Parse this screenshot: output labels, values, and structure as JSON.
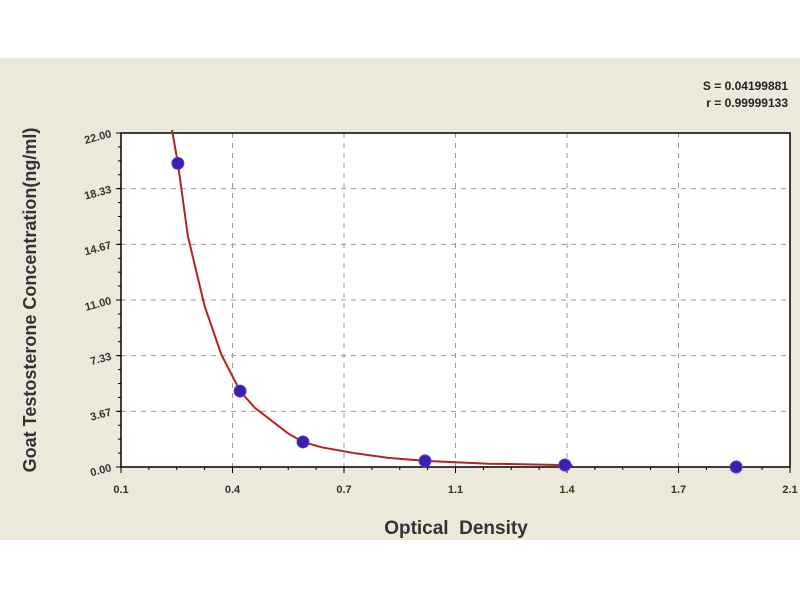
{
  "chart_data": {
    "type": "scatter",
    "xlabel": "Optical  Density",
    "ylabel": "Goat Testosterone Concentration(ng/ml)",
    "xlim": [
      0.1,
      2.1
    ],
    "ylim": [
      0,
      22
    ],
    "x_tick_labels": [
      "0.1",
      "0.4",
      "0.7",
      "1.1",
      "1.4",
      "1.7",
      "2.1"
    ],
    "y_tick_labels": [
      "0.00",
      "3.67",
      "7.33",
      "11.00",
      "14.67",
      "18.33",
      "22.00"
    ],
    "grid": true,
    "annotations": [
      "S = 0.04199881",
      "r = 0.99999133"
    ],
    "points": {
      "x": [
        0.27,
        0.456,
        0.644,
        1.009,
        1.427,
        1.939
      ],
      "y": [
        20,
        5,
        1.65,
        0.4,
        0.13,
        0
      ]
    },
    "fit_curve": {
      "x": [
        0.25,
        0.27,
        0.3,
        0.35,
        0.4,
        0.456,
        0.5,
        0.6,
        0.644,
        0.7,
        0.8,
        0.9,
        1.009,
        1.2,
        1.45
      ],
      "y": [
        22.5,
        20,
        15.2,
        10.6,
        7.4,
        5.0,
        3.9,
        2.2,
        1.65,
        1.3,
        0.9,
        0.6,
        0.4,
        0.22,
        0.12
      ]
    },
    "colors": {
      "points": "#3a1fb0",
      "curve": "#b22222",
      "background": "#ece8da",
      "plot_area": "#ffffff"
    }
  }
}
